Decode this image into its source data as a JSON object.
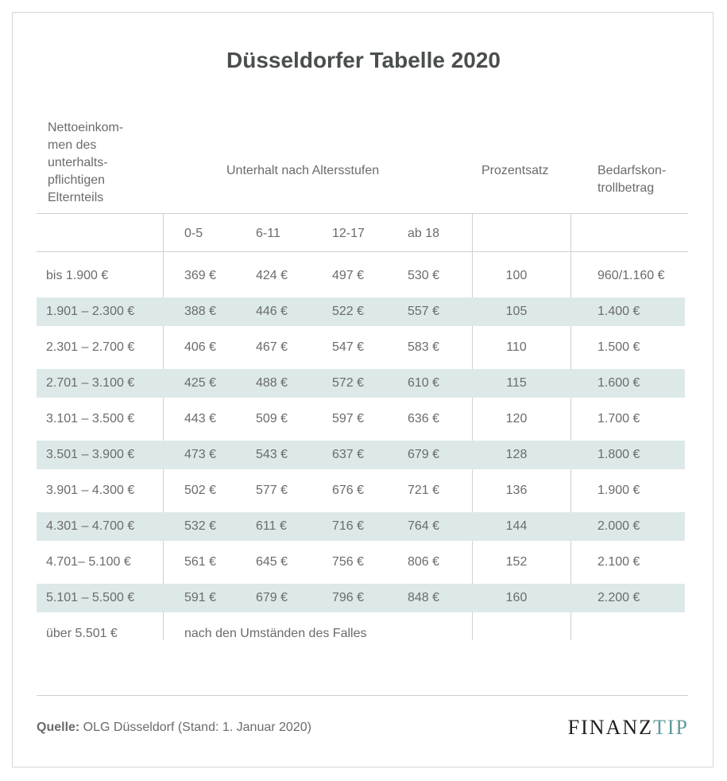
{
  "title": "Düsseldorfer Tabelle 2020",
  "headers": {
    "income": [
      "Nettoeinkom-",
      "men des",
      "unterhalts-",
      "pflichtigen",
      "Elternteils"
    ],
    "support": "Unterhalt nach Altersstufen",
    "percent": "Prozentsatz",
    "control": [
      "Bedarfskon-",
      "trollbetrag"
    ],
    "ages": [
      "0-5",
      "6-11",
      "12-17",
      "ab 18"
    ]
  },
  "rows": [
    {
      "income": "bis 1.900 €",
      "v": [
        "369 €",
        "424 €",
        "497 €",
        "530 €"
      ],
      "pct": "100",
      "ctrl": "960/1.160 €"
    },
    {
      "income": "1.901 – 2.300 €",
      "v": [
        "388 €",
        "446 €",
        "522 €",
        "557 €"
      ],
      "pct": "105",
      "ctrl": "1.400 €"
    },
    {
      "income": "2.301 – 2.700 €",
      "v": [
        "406 €",
        "467 €",
        "547 €",
        "583 €"
      ],
      "pct": "110",
      "ctrl": "1.500 €"
    },
    {
      "income": "2.701 – 3.100 €",
      "v": [
        "425 €",
        "488 €",
        "572 €",
        "610 €"
      ],
      "pct": "115",
      "ctrl": "1.600 €"
    },
    {
      "income": "3.101 – 3.500 €",
      "v": [
        "443 €",
        "509 €",
        "597 €",
        "636 €"
      ],
      "pct": "120",
      "ctrl": "1.700 €"
    },
    {
      "income": "3.501 – 3.900 €",
      "v": [
        "473 €",
        "543 €",
        "637 €",
        "679 €"
      ],
      "pct": "128",
      "ctrl": "1.800 €"
    },
    {
      "income": "3.901 – 4.300 €",
      "v": [
        "502 €",
        "577 €",
        "676 €",
        "721 €"
      ],
      "pct": "136",
      "ctrl": "1.900 €"
    },
    {
      "income": "4.301 – 4.700 €",
      "v": [
        "532 €",
        "611 €",
        "716 €",
        "764 €"
      ],
      "pct": "144",
      "ctrl": "2.000 €"
    },
    {
      "income": "4.701–  5.100 €",
      "v": [
        "561 €",
        "645 €",
        "756 €",
        "806 €"
      ],
      "pct": "152",
      "ctrl": "2.100 €"
    },
    {
      "income": "5.101 – 5.500 €",
      "v": [
        "591 €",
        "679 €",
        "796 €",
        "848 €"
      ],
      "pct": "160",
      "ctrl": "2.200 €"
    }
  ],
  "last_row": {
    "income": "über 5.501 €",
    "text": "nach den Umständen des Falles"
  },
  "footer": {
    "label": "Quelle:",
    "text": " OLG Düsseldorf (Stand: 1. Januar 2020)"
  },
  "logo": {
    "part1": "FINANZ",
    "part2": "TIP"
  },
  "colors": {
    "band": "#dde9e9",
    "logo_accent": "#5f9a9a"
  }
}
